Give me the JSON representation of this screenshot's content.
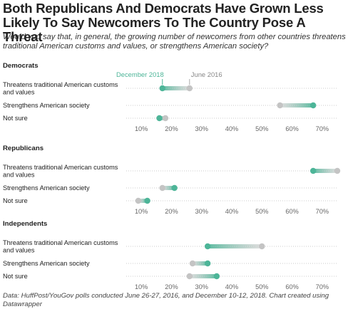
{
  "title": "Both Republicans And Democrats Have Grown Less Likely To Say Newcomers To The Country Pose A Threat",
  "subtitle": "Would you say that, in general, the growing number of newcomers from other countries threatens traditional American customs and values, or strengthens American society?",
  "source": "Data: HuffPost/YouGov polls conducted June 26-27, 2016, and December 10-12, 2018. Chart created using Datawrapper",
  "colors": {
    "dec2018": "#4db598",
    "jun2016": "#c4c4c4",
    "text": "#222222",
    "axis": "#9a9a9a"
  },
  "chart_data": {
    "type": "dot-range",
    "legend": [
      "December 2018",
      "June 2016"
    ],
    "x_ticks": [
      10,
      20,
      30,
      40,
      50,
      60,
      70
    ],
    "x_tick_labels": [
      "10%",
      "20%",
      "30%",
      "40%",
      "50%",
      "60%",
      "70%"
    ],
    "xlim": [
      5,
      75
    ],
    "panels": [
      {
        "name": "Democrats",
        "rows": [
          {
            "label": "Threatens traditional American customs and values",
            "dec2018": 17,
            "jun2016": 26
          },
          {
            "label": "Strengthens American society",
            "dec2018": 67,
            "jun2016": 56
          },
          {
            "label": "Not sure",
            "dec2018": 16,
            "jun2016": 18
          }
        ]
      },
      {
        "name": "Republicans",
        "rows": [
          {
            "label": "Threatens traditional American customs and values",
            "dec2018": 67,
            "jun2016": 75
          },
          {
            "label": "Strengthens American society",
            "dec2018": 21,
            "jun2016": 17
          },
          {
            "label": "Not sure",
            "dec2018": 12,
            "jun2016": 9
          }
        ]
      },
      {
        "name": "Independents",
        "rows": [
          {
            "label": "Threatens traditional American customs and values",
            "dec2018": 32,
            "jun2016": 50
          },
          {
            "label": "Strengthens American society",
            "dec2018": 32,
            "jun2016": 27
          },
          {
            "label": "Not sure",
            "dec2018": 35,
            "jun2016": 26
          }
        ]
      }
    ]
  }
}
